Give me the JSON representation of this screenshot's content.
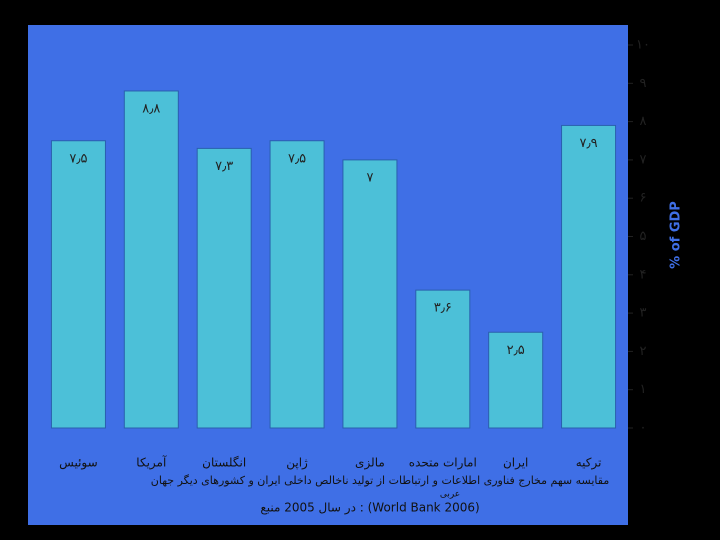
{
  "chart_data": {
    "type": "bar",
    "categories": [
      "سوئیس",
      "آمریکا",
      "انگلستان",
      "ژاپن",
      "مالزی",
      "امارات متحده",
      "ایران",
      "ترکیه"
    ],
    "values": [
      7.5,
      8.8,
      7.3,
      7.5,
      7,
      3.6,
      2.5,
      7.9
    ],
    "value_labels": [
      "۷٫۵",
      "۸٫۸",
      "۷٫۳",
      "۷٫۵",
      "۷",
      "۳٫۶",
      "۲٫۵",
      "۷٫۹"
    ],
    "color": "#4cc0d8",
    "ylim": [
      0,
      10
    ],
    "yticks": [
      {
        "value": 0,
        "label": "۰"
      },
      {
        "value": 1,
        "label": "۱"
      },
      {
        "value": 2,
        "label": "۲"
      },
      {
        "value": 3,
        "label": "۳"
      },
      {
        "value": 4,
        "label": "۴"
      },
      {
        "value": 5,
        "label": "۵"
      },
      {
        "value": 6,
        "label": "۶"
      },
      {
        "value": 7,
        "label": "۷"
      },
      {
        "value": 8,
        "label": "۸"
      },
      {
        "value": 9,
        "label": "۹"
      },
      {
        "value": 10,
        "label": "۱۰"
      }
    ],
    "ylabel": "% of GDP",
    "caption": "مقایسه سهم مخارج فناوری اطلاعات و ارتباطات از تولید ناخالص داخلی ایران و کشورهای دیگر جهان",
    "caption_note": "عربی",
    "source": "در سال 2005 منبع : (World Bank 2006)"
  }
}
